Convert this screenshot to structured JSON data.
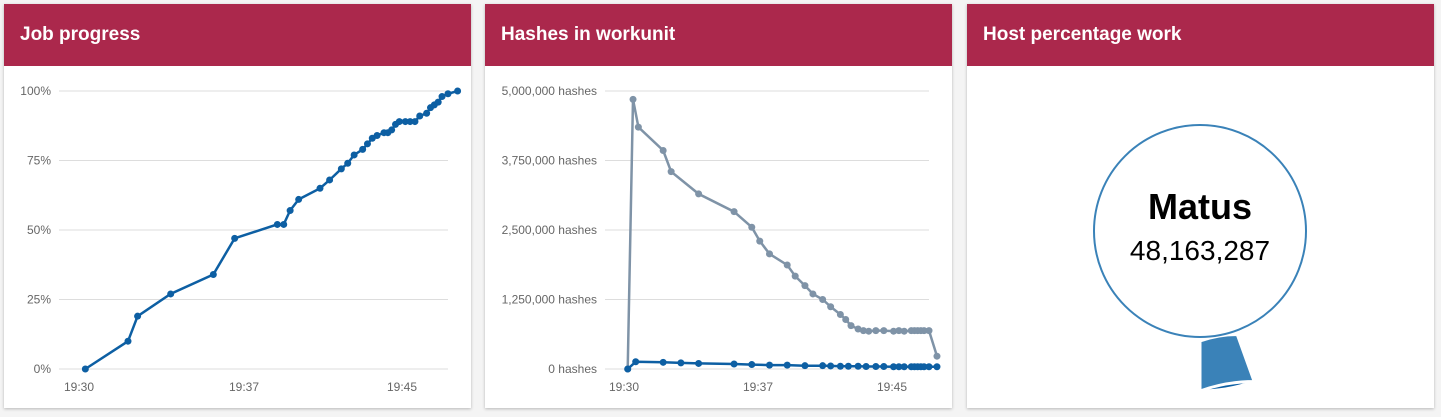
{
  "colors": {
    "header_bg": "#ab284c",
    "header_text": "#ffffff",
    "primary_series": "#0d5fa3",
    "secondary_series": "#7f93a7",
    "donut_main": "#3a82b8",
    "donut_small": "#0d5fa3"
  },
  "cards": [
    {
      "title": "Job progress"
    },
    {
      "title": "Hashes in workunit"
    },
    {
      "title": "Host percentage work"
    }
  ],
  "chart_data": [
    {
      "type": "line",
      "title": "Job progress",
      "xlabel": "",
      "ylabel": "",
      "x_ticks": [
        "19:30",
        "19:37",
        "19:45"
      ],
      "y_ticks": [
        "0%",
        "25%",
        "50%",
        "75%",
        "100%"
      ],
      "ylim": [
        0,
        100
      ],
      "grid": true,
      "series": [
        {
          "points": [
            [
              "19:30",
              0
            ],
            [
              "19:32",
              10
            ],
            [
              "19:32",
              19
            ],
            [
              "19:34",
              27
            ],
            [
              "19:36",
              34
            ],
            [
              "19:37",
              47
            ],
            [
              "19:39",
              52
            ],
            [
              "19:39",
              52
            ],
            [
              "19:39",
              57
            ],
            [
              "19:40",
              61
            ],
            [
              "19:41",
              65
            ],
            [
              "19:41",
              68
            ],
            [
              "19:42",
              72
            ],
            [
              "19:42",
              74
            ],
            [
              "19:42",
              77
            ],
            [
              "19:43",
              79
            ],
            [
              "19:43",
              81
            ],
            [
              "19:43",
              83
            ],
            [
              "19:43",
              84
            ],
            [
              "19:44",
              85
            ],
            [
              "19:44",
              85
            ],
            [
              "19:44",
              86
            ],
            [
              "19:44",
              88
            ],
            [
              "19:44",
              89
            ],
            [
              "19:45",
              89
            ],
            [
              "19:45",
              89
            ],
            [
              "19:45",
              89
            ],
            [
              "19:45",
              91
            ],
            [
              "19:46",
              92
            ],
            [
              "19:46",
              94
            ],
            [
              "19:46",
              95
            ],
            [
              "19:46",
              96
            ],
            [
              "19:46",
              98
            ],
            [
              "19:47",
              99
            ],
            [
              "19:47",
              100
            ]
          ]
        }
      ]
    },
    {
      "type": "line",
      "title": "Hashes in workunit",
      "xlabel": "",
      "ylabel": "",
      "x_ticks": [
        "19:30",
        "19:37",
        "19:45"
      ],
      "y_ticks": [
        "0 hashes",
        "1,250,000 hashes",
        "2,500,000 hashes",
        "3,750,000 hashes",
        "5,000,000 hashes"
      ],
      "ylim": [
        0,
        5000000
      ],
      "grid": true,
      "series": [
        {
          "color": "#7f93a7",
          "points": [
            [
              "19:30",
              0
            ],
            [
              "19:30",
              4850000
            ],
            [
              "19:30",
              4350000
            ],
            [
              "19:32",
              3930000
            ],
            [
              "19:32",
              3550000
            ],
            [
              "19:34",
              3150000
            ],
            [
              "19:36",
              2830000
            ],
            [
              "19:37",
              2550000
            ],
            [
              "19:37",
              2300000
            ],
            [
              "19:38",
              2070000
            ],
            [
              "19:39",
              1870000
            ],
            [
              "19:39",
              1670000
            ],
            [
              "19:40",
              1500000
            ],
            [
              "19:40",
              1350000
            ],
            [
              "19:41",
              1250000
            ],
            [
              "19:41",
              1120000
            ],
            [
              "19:42",
              980000
            ],
            [
              "19:42",
              890000
            ],
            [
              "19:42",
              780000
            ],
            [
              "19:43",
              720000
            ],
            [
              "19:43",
              690000
            ],
            [
              "19:43",
              680000
            ],
            [
              "19:44",
              690000
            ],
            [
              "19:44",
              690000
            ],
            [
              "19:45",
              680000
            ],
            [
              "19:45",
              690000
            ],
            [
              "19:45",
              680000
            ],
            [
              "19:46",
              690000
            ],
            [
              "19:46",
              690000
            ],
            [
              "19:46",
              690000
            ],
            [
              "19:46",
              690000
            ],
            [
              "19:46",
              690000
            ],
            [
              "19:47",
              690000
            ],
            [
              "19:47",
              230000
            ]
          ]
        },
        {
          "color": "#0d5fa3",
          "points": [
            [
              "19:30",
              0
            ],
            [
              "19:30",
              130000
            ],
            [
              "19:32",
              120000
            ],
            [
              "19:33",
              110000
            ],
            [
              "19:34",
              100000
            ],
            [
              "19:36",
              90000
            ],
            [
              "19:37",
              80000
            ],
            [
              "19:38",
              70000
            ],
            [
              "19:39",
              70000
            ],
            [
              "19:40",
              60000
            ],
            [
              "19:41",
              60000
            ],
            [
              "19:41",
              55000
            ],
            [
              "19:42",
              50000
            ],
            [
              "19:42",
              50000
            ],
            [
              "19:43",
              50000
            ],
            [
              "19:43",
              45000
            ],
            [
              "19:44",
              45000
            ],
            [
              "19:44",
              45000
            ],
            [
              "19:45",
              40000
            ],
            [
              "19:45",
              40000
            ],
            [
              "19:45",
              40000
            ],
            [
              "19:46",
              40000
            ],
            [
              "19:46",
              40000
            ],
            [
              "19:46",
              40000
            ],
            [
              "19:46",
              40000
            ],
            [
              "19:46",
              40000
            ],
            [
              "19:47",
              40000
            ],
            [
              "19:47",
              40000
            ]
          ]
        }
      ]
    },
    {
      "type": "pie",
      "title": "Host percentage work",
      "center_label": "Matus",
      "center_value": "48,163,287",
      "slices": [
        {
          "label": "Matus",
          "value": 94.5,
          "color": "#3a82b8"
        },
        {
          "label": "",
          "value": 5.5,
          "color": "#0d5fa3"
        }
      ]
    }
  ]
}
